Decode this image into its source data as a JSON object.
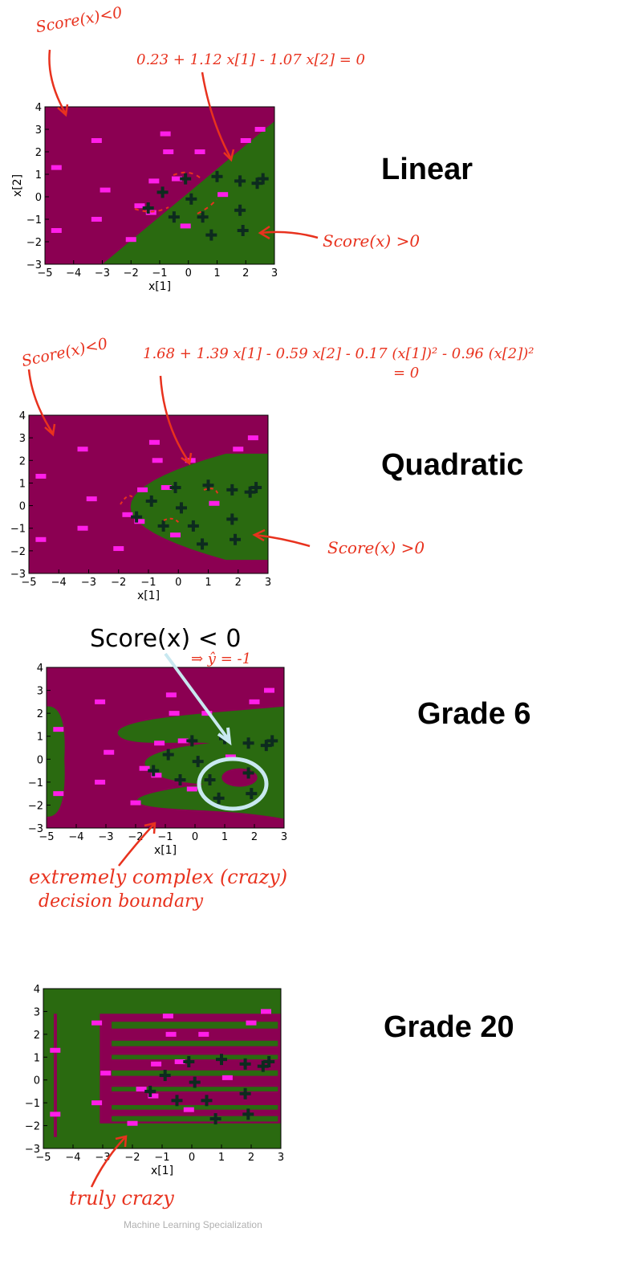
{
  "chart_data": [
    {
      "type": "heatmap",
      "title": "Linear",
      "xlabel": "x[1]",
      "ylabel": "x[2]",
      "xlim": [
        -5,
        3
      ],
      "ylim": [
        -3,
        4
      ],
      "xticks": [
        "−5",
        "−4",
        "−3",
        "−2",
        "−1",
        "0",
        "1",
        "2",
        "3"
      ],
      "yticks": [
        "−3",
        "−2",
        "−1",
        "0",
        "1",
        "2",
        "3",
        "4"
      ],
      "annotations": [
        "Score(x)<0",
        "0.23 + 1.12 x[1] - 1.07 x[2] = 0",
        "Score(x) >0"
      ]
    },
    {
      "type": "heatmap",
      "title": "Quadratic",
      "xlabel": "x[1]",
      "ylabel": "",
      "xlim": [
        -5,
        3
      ],
      "ylim": [
        -3,
        4
      ],
      "xticks": [
        "−5",
        "−4",
        "−3",
        "−2",
        "−1",
        "0",
        "1",
        "2",
        "3"
      ],
      "yticks": [
        "−3",
        "−2",
        "−1",
        "0",
        "1",
        "2",
        "3",
        "4"
      ],
      "annotations": [
        "Score(x)<0",
        "1.68 + 1.39 x[1] - 0.59 x[2] - 0.17 (x[1])² - 0.96 (x[2])²",
        "= 0",
        "Score(x) >0"
      ]
    },
    {
      "type": "heatmap",
      "title": "Grade 6",
      "xlabel": "x[1]",
      "ylabel": "",
      "xlim": [
        -5,
        3
      ],
      "ylim": [
        -3,
        4
      ],
      "xticks": [
        "−5",
        "−4",
        "−3",
        "−2",
        "−1",
        "0",
        "1",
        "2",
        "3"
      ],
      "yticks": [
        "−3",
        "−2",
        "−1",
        "0",
        "1",
        "2",
        "3",
        "4"
      ],
      "annotations": [
        "Score(x) < 0",
        "⇒ ŷ = -1",
        "extremely complex (crazy)",
        "decision boundary"
      ]
    },
    {
      "type": "heatmap",
      "title": "Grade 20",
      "xlabel": "x[1]",
      "ylabel": "",
      "xlim": [
        -5,
        3
      ],
      "ylim": [
        -3,
        4
      ],
      "xticks": [
        "−5",
        "−4",
        "−3",
        "−2",
        "−1",
        "0",
        "1",
        "2",
        "3"
      ],
      "yticks": [
        "−3",
        "−2",
        "−1",
        "0",
        "1",
        "2",
        "3",
        "4"
      ],
      "annotations": [
        "truly crazy"
      ]
    }
  ],
  "points": {
    "negative": [
      [
        -4.6,
        1.3
      ],
      [
        -4.6,
        -1.5
      ],
      [
        -3.2,
        2.5
      ],
      [
        -2.9,
        0.3
      ],
      [
        -3.2,
        -1.0
      ],
      [
        -2.0,
        -1.9
      ],
      [
        -0.8,
        2.8
      ],
      [
        -0.7,
        2.0
      ],
      [
        0.4,
        2.0
      ],
      [
        -1.2,
        0.7
      ],
      [
        -1.7,
        -0.4
      ],
      [
        -1.3,
        -0.7
      ],
      [
        -0.4,
        0.8
      ],
      [
        -0.1,
        -1.3
      ],
      [
        1.2,
        0.1
      ],
      [
        2.0,
        2.5
      ],
      [
        2.5,
        3.0
      ]
    ],
    "positive": [
      [
        -1.4,
        -0.5
      ],
      [
        -0.9,
        0.2
      ],
      [
        -0.1,
        0.8
      ],
      [
        0.1,
        -0.1
      ],
      [
        -0.5,
        -0.9
      ],
      [
        0.5,
        -0.9
      ],
      [
        1.0,
        0.9
      ],
      [
        1.8,
        0.7
      ],
      [
        2.4,
        0.6
      ],
      [
        2.6,
        0.8
      ],
      [
        1.8,
        -0.6
      ],
      [
        0.8,
        -1.7
      ],
      [
        1.9,
        -1.5
      ]
    ]
  },
  "colors": {
    "negative_region": "#8b0052",
    "positive_region": "#2a6a10",
    "negative_mark": "#ff1ee8",
    "positive_mark": "#0d2b1f",
    "ink": "#e8321e",
    "circle": "#c8e8f0"
  },
  "footer": "Machine Learning Specialization"
}
